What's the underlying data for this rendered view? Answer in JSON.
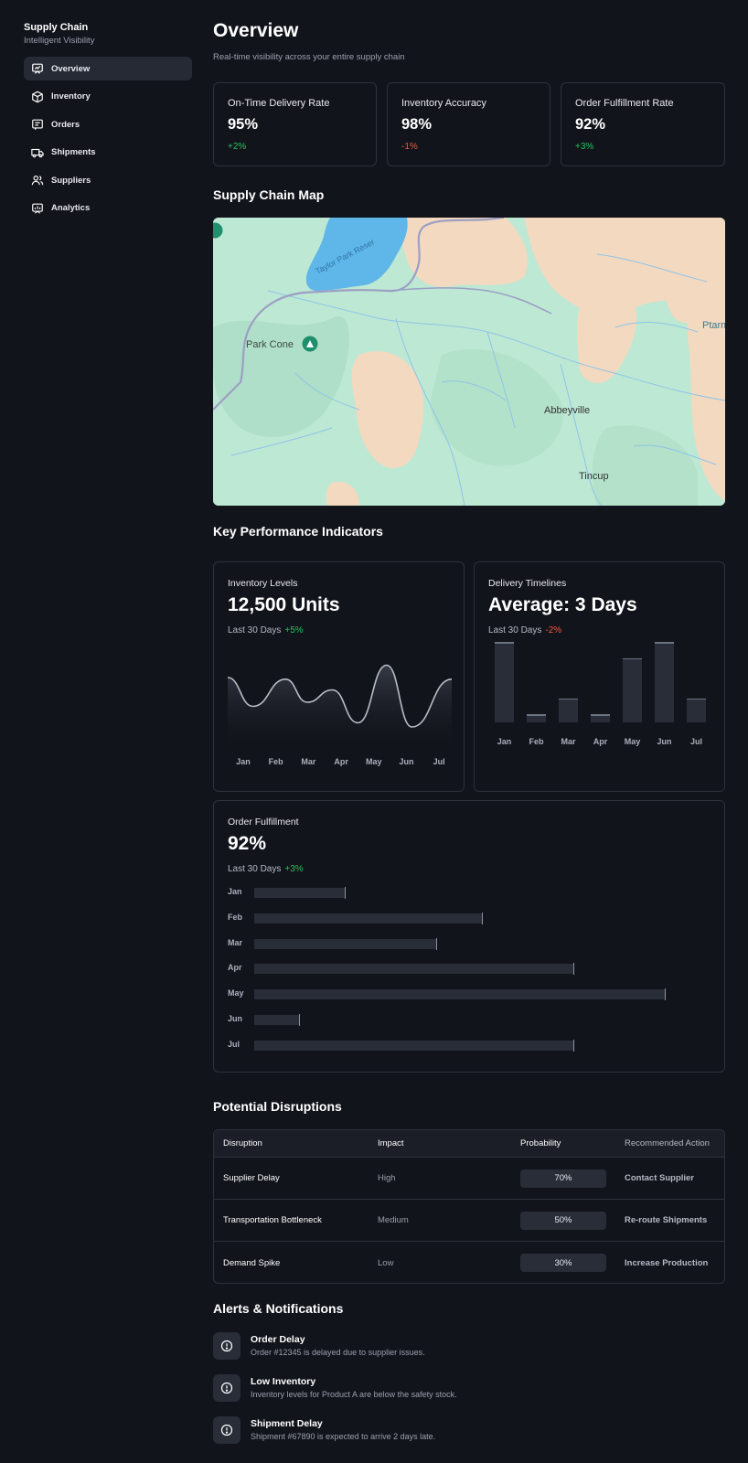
{
  "sidebar": {
    "brand_title": "Supply Chain",
    "brand_subtitle": "Intelligent Visibility",
    "items": [
      {
        "label": "Overview",
        "icon": "overview-icon",
        "active": true
      },
      {
        "label": "Inventory",
        "icon": "box-icon",
        "active": false
      },
      {
        "label": "Orders",
        "icon": "orders-icon",
        "active": false
      },
      {
        "label": "Shipments",
        "icon": "truck-icon",
        "active": false
      },
      {
        "label": "Suppliers",
        "icon": "users-icon",
        "active": false
      },
      {
        "label": "Analytics",
        "icon": "analytics-icon",
        "active": false
      }
    ]
  },
  "header": {
    "title": "Overview",
    "subtitle": "Real-time visibility across your entire supply chain"
  },
  "stats": [
    {
      "label": "On-Time Delivery Rate",
      "value": "95%",
      "delta": "+2%",
      "trend": "up"
    },
    {
      "label": "Inventory Accuracy",
      "value": "98%",
      "delta": "-1%",
      "trend": "down"
    },
    {
      "label": "Order Fulfillment Rate",
      "value": "92%",
      "delta": "+3%",
      "trend": "up"
    }
  ],
  "map": {
    "title": "Supply Chain Map",
    "labels": {
      "reservoir": "Taylor Park Reser",
      "park_cone": "Park Cone",
      "abbeyville": "Abbeyville",
      "tincup": "Tincup",
      "edge": "Ptarm"
    }
  },
  "kpi": {
    "title": "Key Performance Indicators",
    "inventory": {
      "label": "Inventory Levels",
      "value": "12,500 Units",
      "period": "Last 30 Days",
      "delta": "+5%"
    },
    "delivery": {
      "label": "Delivery Timelines",
      "value": "Average: 3 Days",
      "period": "Last 30 Days",
      "delta": "-2%"
    },
    "fulfillment": {
      "label": "Order Fulfillment",
      "value": "92%",
      "period": "Last 30 Days",
      "delta": "+3%"
    }
  },
  "chart_data": [
    {
      "type": "line",
      "categories": [
        "Jan",
        "Feb",
        "Mar",
        "Apr",
        "May",
        "Jun",
        "Jul"
      ],
      "values": [
        80,
        45,
        78,
        50,
        65,
        25,
        95,
        20,
        78
      ],
      "x": [
        0,
        0.7,
        1.6,
        2.2,
        2.9,
        3.6,
        4.4,
        5.1,
        6.2
      ]
    },
    {
      "type": "bar",
      "categories": [
        "Jan",
        "Feb",
        "Mar",
        "Apr",
        "May",
        "Jun",
        "Jul"
      ],
      "values": [
        100,
        10,
        30,
        10,
        80,
        100,
        30
      ],
      "ylim": [
        0,
        100
      ]
    },
    {
      "type": "bar",
      "orientation": "horizontal",
      "categories": [
        "Jan",
        "Feb",
        "Mar",
        "Apr",
        "May",
        "Jun",
        "Jul"
      ],
      "values": [
        22,
        55,
        44,
        77,
        99,
        11,
        77
      ],
      "ylim": [
        0,
        100
      ]
    }
  ],
  "disruptions": {
    "title": "Potential Disruptions",
    "headers": [
      "Disruption",
      "Impact",
      "Probability",
      "Recommended Action"
    ],
    "rows": [
      {
        "name": "Supplier Delay",
        "impact": "High",
        "probability": "70%",
        "action": "Contact Supplier"
      },
      {
        "name": "Transportation Bottleneck",
        "impact": "Medium",
        "probability": "50%",
        "action": "Re-route Shipments"
      },
      {
        "name": "Demand Spike",
        "impact": "Low",
        "probability": "30%",
        "action": "Increase Production"
      }
    ]
  },
  "alerts": {
    "title": "Alerts & Notifications",
    "items": [
      {
        "title": "Order Delay",
        "message": "Order #12345 is delayed due to supplier issues.",
        "icon": "alert-circle-icon"
      },
      {
        "title": "Low Inventory",
        "message": "Inventory levels for Product A are below the safety stock.",
        "icon": "alert-circle-icon"
      },
      {
        "title": "Shipment Delay",
        "message": "Shipment #67890 is expected to arrive 2 days late.",
        "icon": "alert-circle-icon"
      }
    ]
  }
}
